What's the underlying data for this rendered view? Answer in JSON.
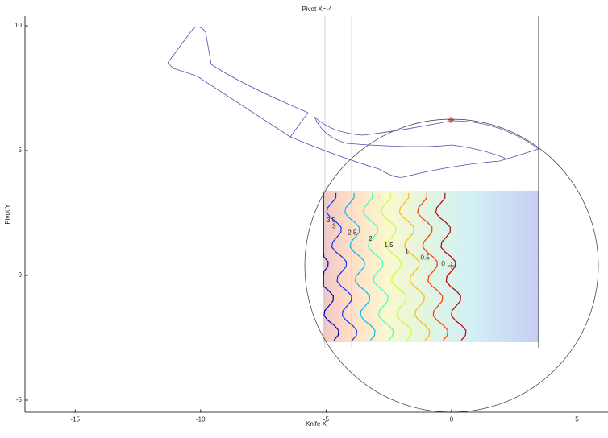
{
  "chart_data": {
    "type": "contour",
    "title": "Pivot X=-4",
    "xlabel": "Knife X",
    "ylabel": "Pivot Y",
    "xlim": [
      -17,
      6.2
    ],
    "ylim": [
      -5.5,
      10.4
    ],
    "xticks": [
      -15,
      -10,
      -5,
      0,
      5
    ],
    "yticks": [
      -5,
      0,
      5,
      10
    ],
    "levels": [
      3.5,
      3,
      2.5,
      2,
      1.5,
      1,
      0.5,
      0
    ]
  }
}
